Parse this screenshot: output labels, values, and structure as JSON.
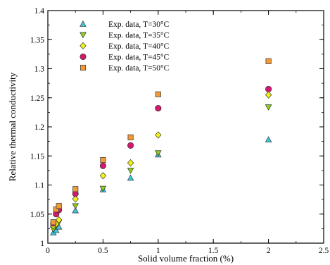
{
  "chart_data": {
    "type": "scatter",
    "title": "",
    "xlabel": "Solid volume fraction (%)",
    "ylabel": "Relative thermal conductivity",
    "xlim": [
      0,
      2.5
    ],
    "ylim": [
      1,
      1.4
    ],
    "x_ticks": [
      "0",
      "0.5",
      "1",
      "1.5",
      "2",
      "2.5"
    ],
    "y_ticks": [
      "1",
      "1.05",
      "1.1",
      "1.15",
      "1.2",
      "1.25",
      "1.3",
      "1.35",
      "1.4"
    ],
    "grid": false,
    "legend_position": "top-left",
    "series": [
      {
        "name": "Exp. data, T=30°C",
        "marker": "triangle-up",
        "color": "#3ec6e0",
        "points": [
          [
            0.05,
            1.018
          ],
          [
            0.075,
            1.022
          ],
          [
            0.1,
            1.028
          ],
          [
            0.25,
            1.056
          ],
          [
            0.5,
            1.092
          ],
          [
            0.75,
            1.112
          ],
          [
            1.0,
            1.152
          ],
          [
            2.0,
            1.178
          ]
        ]
      },
      {
        "name": "Exp. data, T=35°C",
        "marker": "triangle-down",
        "color": "#8fd11a",
        "points": [
          [
            0.05,
            1.024
          ],
          [
            0.075,
            1.03
          ],
          [
            0.1,
            1.036
          ],
          [
            0.25,
            1.064
          ],
          [
            0.5,
            1.094
          ],
          [
            0.75,
            1.125
          ],
          [
            1.0,
            1.155
          ],
          [
            2.0,
            1.234
          ]
        ]
      },
      {
        "name": "Exp. data, T=40°C",
        "marker": "diamond",
        "color": "#f2f21a",
        "points": [
          [
            0.05,
            1.03
          ],
          [
            0.075,
            1.033
          ],
          [
            0.1,
            1.04
          ],
          [
            0.25,
            1.076
          ],
          [
            0.5,
            1.116
          ],
          [
            0.75,
            1.138
          ],
          [
            1.0,
            1.186
          ],
          [
            2.0,
            1.255
          ]
        ]
      },
      {
        "name": "Exp. data, T=45°C",
        "marker": "circle",
        "color": "#d3196d",
        "points": [
          [
            0.05,
            1.034
          ],
          [
            0.075,
            1.05
          ],
          [
            0.1,
            1.057
          ],
          [
            0.25,
            1.085
          ],
          [
            0.5,
            1.133
          ],
          [
            0.75,
            1.168
          ],
          [
            1.0,
            1.232
          ],
          [
            2.0,
            1.265
          ]
        ]
      },
      {
        "name": "Exp. data, T=50°C",
        "marker": "square",
        "color": "#f09a3a",
        "points": [
          [
            0.05,
            1.036
          ],
          [
            0.075,
            1.058
          ],
          [
            0.1,
            1.064
          ],
          [
            0.25,
            1.093
          ],
          [
            0.5,
            1.143
          ],
          [
            0.75,
            1.182
          ],
          [
            1.0,
            1.256
          ],
          [
            2.0,
            1.313
          ]
        ]
      }
    ]
  }
}
